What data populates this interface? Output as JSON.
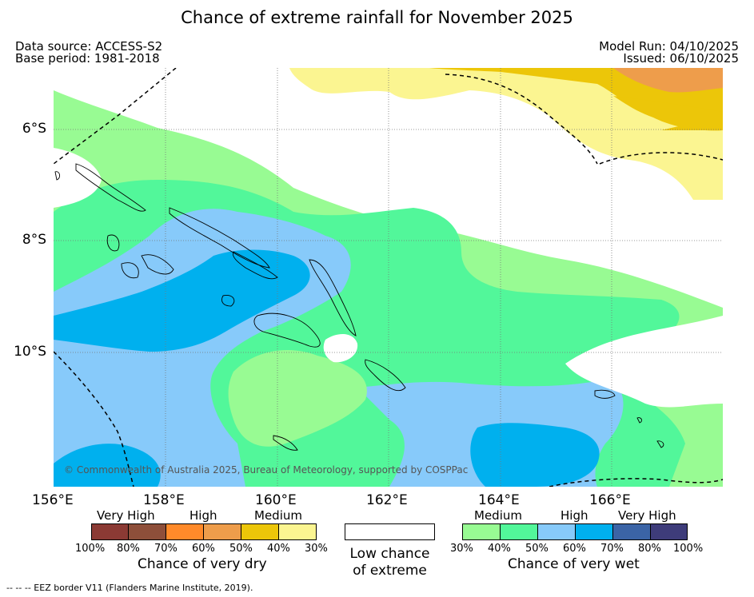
{
  "title": "Chance of extreme rainfall for November 2025",
  "header": {
    "data_source": "Data source: ACCESS-S2",
    "base_period": "Base period: 1981-2018",
    "model_run": "Model Run: 04/10/2025",
    "issued": "Issued: 06/10/2025"
  },
  "map": {
    "longitude_labels": [
      "156°E",
      "158°E",
      "160°E",
      "162°E",
      "164°E",
      "166°E"
    ],
    "latitude_labels": [
      "6°S",
      "8°S",
      "10°S"
    ],
    "copyright": "© Commonwealth of Australia 2025, Bureau of Meteorology, supported by COSPPac"
  },
  "legend_dry": {
    "categories": [
      "Very High",
      "High",
      "Medium"
    ],
    "ticks": [
      "100%",
      "80%",
      "70%",
      "60%",
      "50%",
      "40%",
      "30%"
    ],
    "colors": [
      "#8b3a34",
      "#8e4f3a",
      "#ff8a2a",
      "#ee9d4b",
      "#ecc609",
      "#fbf591"
    ],
    "title": "Chance of very dry"
  },
  "legend_low": {
    "line1": "Low chance",
    "line2": "of extreme",
    "color": "#ffffff"
  },
  "legend_wet": {
    "categories": [
      "Medium",
      "High",
      "Very High"
    ],
    "ticks": [
      "30%",
      "40%",
      "50%",
      "60%",
      "70%",
      "80%",
      "100%"
    ],
    "colors": [
      "#98fb93",
      "#52f79a",
      "#87cafa",
      "#00b0ee",
      "#3b64a6",
      "#3e3c7a"
    ],
    "title": "Chance of very wet"
  },
  "footer": "--  --  -- EEZ border V11 (Flanders Marine Institute, 2019)."
}
